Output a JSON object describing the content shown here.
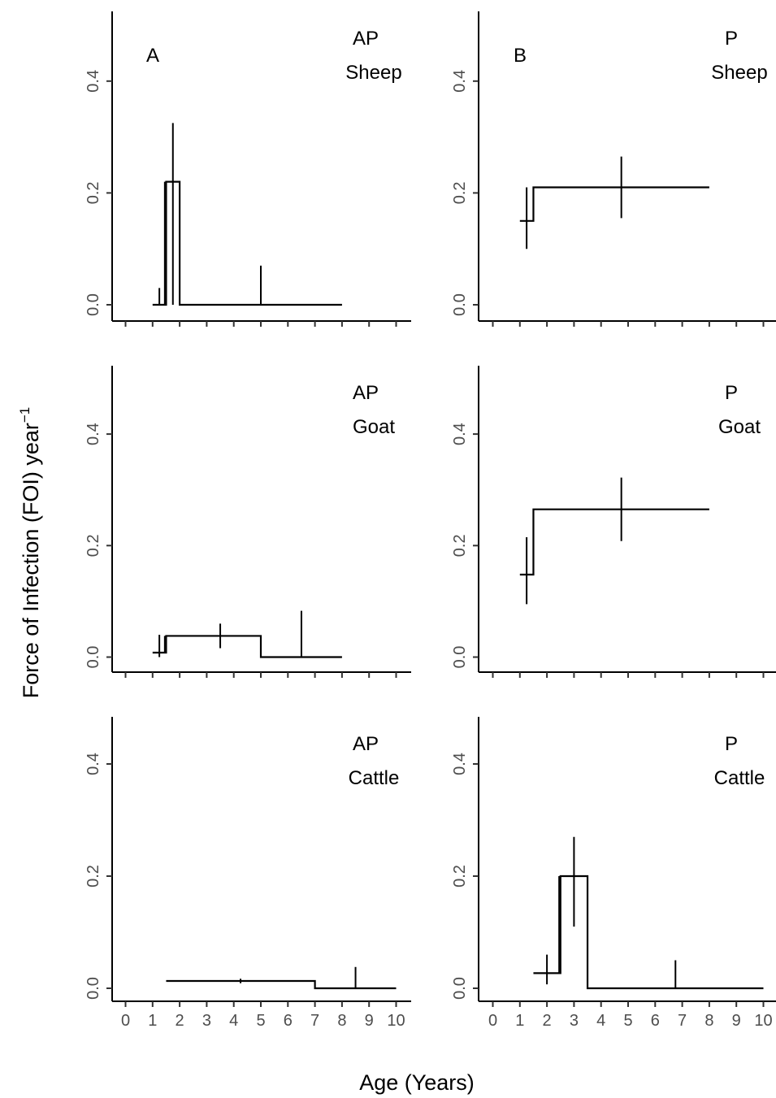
{
  "figure": {
    "y_axis_title": "Force of Infection (FOI) year",
    "y_axis_title_superscript": "−1",
    "x_axis_title": "Age (Years)"
  },
  "chart_data": [
    {
      "type": "step",
      "panel_letter": "A",
      "group": "AP",
      "species": "Sheep",
      "xlim": [
        0,
        10
      ],
      "ylim": [
        0,
        0.5
      ],
      "x_ticks": [
        "0",
        "1",
        "2",
        "3",
        "4",
        "5",
        "6",
        "7",
        "8",
        "9",
        "10"
      ],
      "y_ticks": [
        "0.0",
        "0.2",
        "0.4"
      ],
      "x_tick_labels_shown": false,
      "segments": [
        {
          "x_start": 1.0,
          "x_end": 1.5,
          "foi": 0.0,
          "x_mid": 1.25,
          "ci_low": 0.0,
          "ci_high": 0.03
        },
        {
          "x_start": 1.5,
          "x_end": 2.0,
          "foi": 0.22,
          "x_mid": 1.75,
          "ci_low": 0.0,
          "ci_high": 0.325
        },
        {
          "x_start": 2.0,
          "x_end": 8.0,
          "foi": 0.0,
          "x_mid": 5.0,
          "ci_low": 0.0,
          "ci_high": 0.07
        }
      ]
    },
    {
      "type": "step",
      "panel_letter": "B",
      "group": "P",
      "species": "Sheep",
      "xlim": [
        0,
        10
      ],
      "ylim": [
        0,
        0.5
      ],
      "x_ticks": [
        "0",
        "1",
        "2",
        "3",
        "4",
        "5",
        "6",
        "7",
        "8",
        "9",
        "10"
      ],
      "y_ticks": [
        "0.0",
        "0.2",
        "0.4"
      ],
      "x_tick_labels_shown": false,
      "segments": [
        {
          "x_start": 1.0,
          "x_end": 1.5,
          "foi": 0.15,
          "x_mid": 1.25,
          "ci_low": 0.1,
          "ci_high": 0.21
        },
        {
          "x_start": 1.5,
          "x_end": 8.0,
          "foi": 0.21,
          "x_mid": 4.75,
          "ci_low": 0.155,
          "ci_high": 0.265
        }
      ]
    },
    {
      "type": "step",
      "panel_letter": "",
      "group": "AP",
      "species": "Goat",
      "xlim": [
        0,
        10
      ],
      "ylim": [
        0,
        0.5
      ],
      "x_ticks": [
        "0",
        "1",
        "2",
        "3",
        "4",
        "5",
        "6",
        "7",
        "8",
        "9",
        "10"
      ],
      "y_ticks": [
        "0.0",
        "0.2",
        "0.4"
      ],
      "x_tick_labels_shown": false,
      "segments": [
        {
          "x_start": 1.0,
          "x_end": 1.5,
          "foi": 0.008,
          "x_mid": 1.25,
          "ci_low": 0.0,
          "ci_high": 0.04
        },
        {
          "x_start": 1.5,
          "x_end": 5.0,
          "foi": 0.038,
          "x_mid": 3.5,
          "ci_low": 0.016,
          "ci_high": 0.06
        },
        {
          "x_start": 5.0,
          "x_end": 8.0,
          "foi": 0.0,
          "x_mid": 6.5,
          "ci_low": 0.0,
          "ci_high": 0.083
        }
      ]
    },
    {
      "type": "step",
      "panel_letter": "",
      "group": "P",
      "species": "Goat",
      "xlim": [
        0,
        10
      ],
      "ylim": [
        0,
        0.5
      ],
      "x_ticks": [
        "0",
        "1",
        "2",
        "3",
        "4",
        "5",
        "6",
        "7",
        "8",
        "9",
        "10"
      ],
      "y_ticks": [
        "0.0",
        "0.2",
        "0.4"
      ],
      "x_tick_labels_shown": false,
      "segments": [
        {
          "x_start": 1.0,
          "x_end": 1.5,
          "foi": 0.148,
          "x_mid": 1.25,
          "ci_low": 0.095,
          "ci_high": 0.215
        },
        {
          "x_start": 1.5,
          "x_end": 8.0,
          "foi": 0.265,
          "x_mid": 4.75,
          "ci_low": 0.208,
          "ci_high": 0.322
        }
      ]
    },
    {
      "type": "step",
      "panel_letter": "",
      "group": "AP",
      "species": "Cattle",
      "xlim": [
        0,
        10
      ],
      "ylim": [
        0,
        0.5
      ],
      "x_ticks": [
        "0",
        "1",
        "2",
        "3",
        "4",
        "5",
        "6",
        "7",
        "8",
        "9",
        "10"
      ],
      "y_ticks": [
        "0.0",
        "0.2",
        "0.4"
      ],
      "x_tick_labels_shown": true,
      "segments": [
        {
          "x_start": 1.5,
          "x_end": 7.0,
          "foi": 0.013,
          "x_mid": 4.25,
          "ci_low": 0.009,
          "ci_high": 0.017
        },
        {
          "x_start": 7.0,
          "x_end": 10.0,
          "foi": 0.0,
          "x_mid": 8.5,
          "ci_low": 0.0,
          "ci_high": 0.038
        }
      ]
    },
    {
      "type": "step",
      "panel_letter": "",
      "group": "P",
      "species": "Cattle",
      "xlim": [
        0,
        10
      ],
      "ylim": [
        0,
        0.5
      ],
      "x_ticks": [
        "0",
        "1",
        "2",
        "3",
        "4",
        "5",
        "6",
        "7",
        "8",
        "9",
        "10"
      ],
      "y_ticks": [
        "0.0",
        "0.2",
        "0.4"
      ],
      "x_tick_labels_shown": true,
      "segments": [
        {
          "x_start": 1.5,
          "x_end": 2.5,
          "foi": 0.027,
          "x_mid": 2.0,
          "ci_low": 0.007,
          "ci_high": 0.06
        },
        {
          "x_start": 2.5,
          "x_end": 3.5,
          "foi": 0.2,
          "x_mid": 3.0,
          "ci_low": 0.11,
          "ci_high": 0.27
        },
        {
          "x_start": 3.5,
          "x_end": 10.0,
          "foi": 0.0,
          "x_mid": 6.75,
          "ci_low": 0.0,
          "ci_high": 0.05
        }
      ]
    }
  ]
}
